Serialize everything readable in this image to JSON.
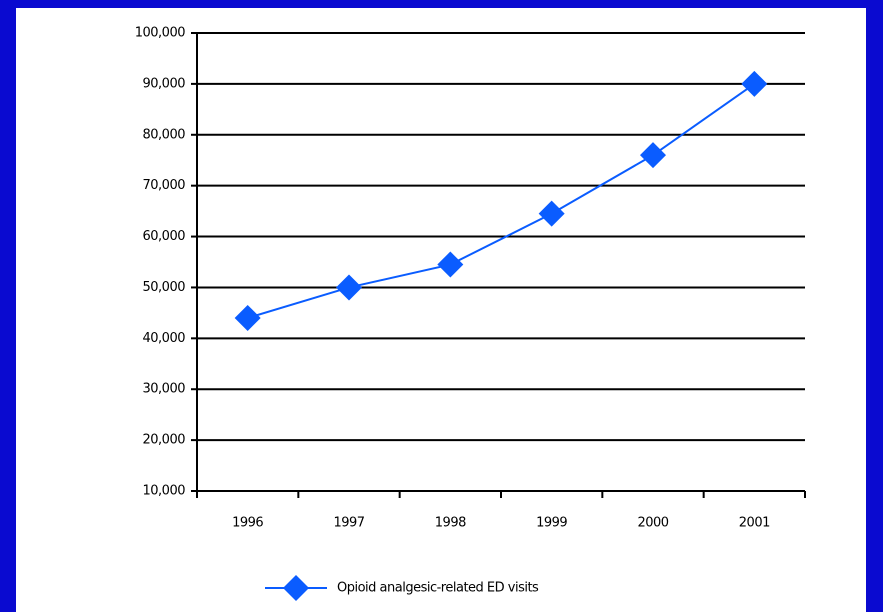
{
  "chart_data": {
    "type": "line",
    "categories": [
      "1996",
      "1997",
      "1998",
      "1999",
      "2000",
      "2001"
    ],
    "series": [
      {
        "name": "Opioid analgesic-related ED visits",
        "color": "#0a5cff",
        "values": [
          44000,
          50000,
          54500,
          64500,
          76000,
          90000
        ]
      }
    ],
    "ylim": [
      10000,
      100000
    ],
    "yticks": [
      {
        "value": 10000,
        "label": "10,000"
      },
      {
        "value": 20000,
        "label": "20,000"
      },
      {
        "value": 30000,
        "label": "30,000"
      },
      {
        "value": 40000,
        "label": "40,000"
      },
      {
        "value": 50000,
        "label": "50,000"
      },
      {
        "value": 60000,
        "label": "60,000"
      },
      {
        "value": 70000,
        "label": "70,000"
      },
      {
        "value": 80000,
        "label": "80,000"
      },
      {
        "value": 90000,
        "label": "90,000"
      },
      {
        "value": 100000,
        "label": "100,000"
      }
    ],
    "grid": true,
    "legend": "bottom"
  }
}
